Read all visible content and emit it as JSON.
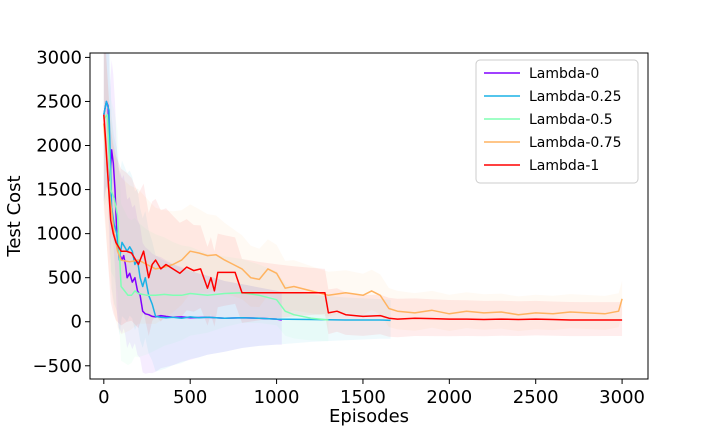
{
  "chart_data": {
    "type": "line",
    "title": "",
    "xlabel": "Episodes",
    "ylabel": "Test Cost",
    "xlim": [
      -80,
      3150
    ],
    "ylim": [
      -650,
      3050
    ],
    "xticks": [
      0,
      500,
      1000,
      1500,
      2000,
      2500,
      3000
    ],
    "xtick_labels": [
      "0",
      "500",
      "1000",
      "1500",
      "2000",
      "2500",
      "3000"
    ],
    "yticks": [
      -500,
      0,
      500,
      1000,
      1500,
      2000,
      2500,
      3000
    ],
    "ytick_labels": [
      "−500",
      "0",
      "500",
      "1000",
      "1500",
      "2000",
      "2500",
      "3000"
    ],
    "grid": false,
    "legend_position": "top-right",
    "series": [
      {
        "name": "Lambda-0",
        "color": "#8000ff",
        "x": [
          0,
          15,
          25,
          35,
          45,
          55,
          65,
          75,
          85,
          95,
          105,
          115,
          125,
          135,
          150,
          165,
          180,
          195,
          210,
          225,
          240,
          260,
          280,
          300,
          330,
          360,
          400,
          450,
          500,
          600,
          700,
          800,
          900,
          1000,
          1030
        ],
        "y": [
          2350,
          2500,
          2450,
          1600,
          1950,
          1800,
          1500,
          1000,
          800,
          750,
          700,
          750,
          650,
          500,
          550,
          450,
          500,
          350,
          300,
          120,
          90,
          80,
          60,
          55,
          70,
          60,
          50,
          55,
          45,
          50,
          40,
          45,
          40,
          30,
          20
        ]
      },
      {
        "name": "Lambda-0.25",
        "color": "#1ab2e6",
        "x": [
          0,
          15,
          30,
          45,
          60,
          75,
          90,
          105,
          120,
          135,
          150,
          165,
          180,
          195,
          210,
          225,
          240,
          260,
          280,
          300,
          330,
          360,
          400,
          450,
          500,
          550,
          600,
          700,
          800,
          900,
          1000,
          1200,
          1400,
          1600,
          1660
        ],
        "y": [
          2350,
          2500,
          2400,
          1300,
          1100,
          1000,
          700,
          900,
          850,
          800,
          850,
          800,
          650,
          700,
          500,
          400,
          500,
          300,
          200,
          60,
          50,
          45,
          50,
          40,
          55,
          45,
          50,
          40,
          45,
          40,
          30,
          25,
          20,
          20,
          15
        ]
      },
      {
        "name": "Lambda-0.5",
        "color": "#80ffb4",
        "x": [
          0,
          20,
          40,
          60,
          80,
          100,
          120,
          140,
          160,
          180,
          200,
          250,
          300,
          350,
          400,
          450,
          500,
          600,
          700,
          800,
          900,
          1000,
          1050,
          1100,
          1200,
          1300
        ],
        "y": [
          2300,
          2350,
          1500,
          1400,
          1200,
          400,
          350,
          300,
          300,
          350,
          320,
          300,
          300,
          310,
          300,
          300,
          320,
          300,
          320,
          330,
          300,
          250,
          120,
          80,
          40,
          20
        ]
      },
      {
        "name": "Lambda-0.75",
        "color": "#ffb360",
        "x": [
          0,
          30,
          60,
          80,
          100,
          150,
          200,
          250,
          300,
          350,
          400,
          450,
          500,
          550,
          600,
          650,
          700,
          750,
          800,
          850,
          900,
          950,
          1000,
          1050,
          1100,
          1200,
          1300,
          1400,
          1500,
          1550,
          1600,
          1650,
          1700,
          1800,
          1900,
          2000,
          2100,
          2200,
          2300,
          2400,
          2500,
          2600,
          2700,
          2800,
          2900,
          2980,
          3000
        ],
        "y": [
          2250,
          1500,
          1000,
          800,
          700,
          680,
          700,
          650,
          600,
          620,
          650,
          700,
          800,
          780,
          750,
          760,
          700,
          650,
          600,
          500,
          480,
          600,
          550,
          380,
          400,
          350,
          300,
          330,
          300,
          350,
          300,
          150,
          120,
          100,
          130,
          90,
          120,
          100,
          110,
          80,
          100,
          90,
          110,
          100,
          90,
          120,
          260
        ]
      },
      {
        "name": "Lambda-1",
        "color": "#ff0000",
        "x": [
          0,
          10,
          20,
          40,
          55,
          70,
          85,
          100,
          130,
          160,
          200,
          230,
          260,
          280,
          300,
          330,
          360,
          400,
          440,
          480,
          520,
          560,
          600,
          620,
          640,
          660,
          700,
          760,
          800,
          900,
          1000,
          1100,
          1200,
          1280,
          1300,
          1350,
          1400,
          1500,
          1600,
          1650,
          1700,
          1800,
          1900,
          2000,
          2100,
          2200,
          2300,
          2400,
          2500,
          2600,
          2700,
          2800,
          2900,
          3000
        ],
        "y": [
          2350,
          2080,
          1750,
          1150,
          1000,
          900,
          850,
          800,
          800,
          780,
          650,
          800,
          500,
          650,
          700,
          600,
          650,
          600,
          550,
          620,
          580,
          600,
          380,
          500,
          350,
          560,
          560,
          560,
          330,
          330,
          330,
          330,
          330,
          330,
          100,
          120,
          80,
          60,
          70,
          40,
          30,
          40,
          35,
          30,
          30,
          25,
          30,
          25,
          30,
          25,
          20,
          20,
          20,
          20
        ]
      }
    ]
  }
}
